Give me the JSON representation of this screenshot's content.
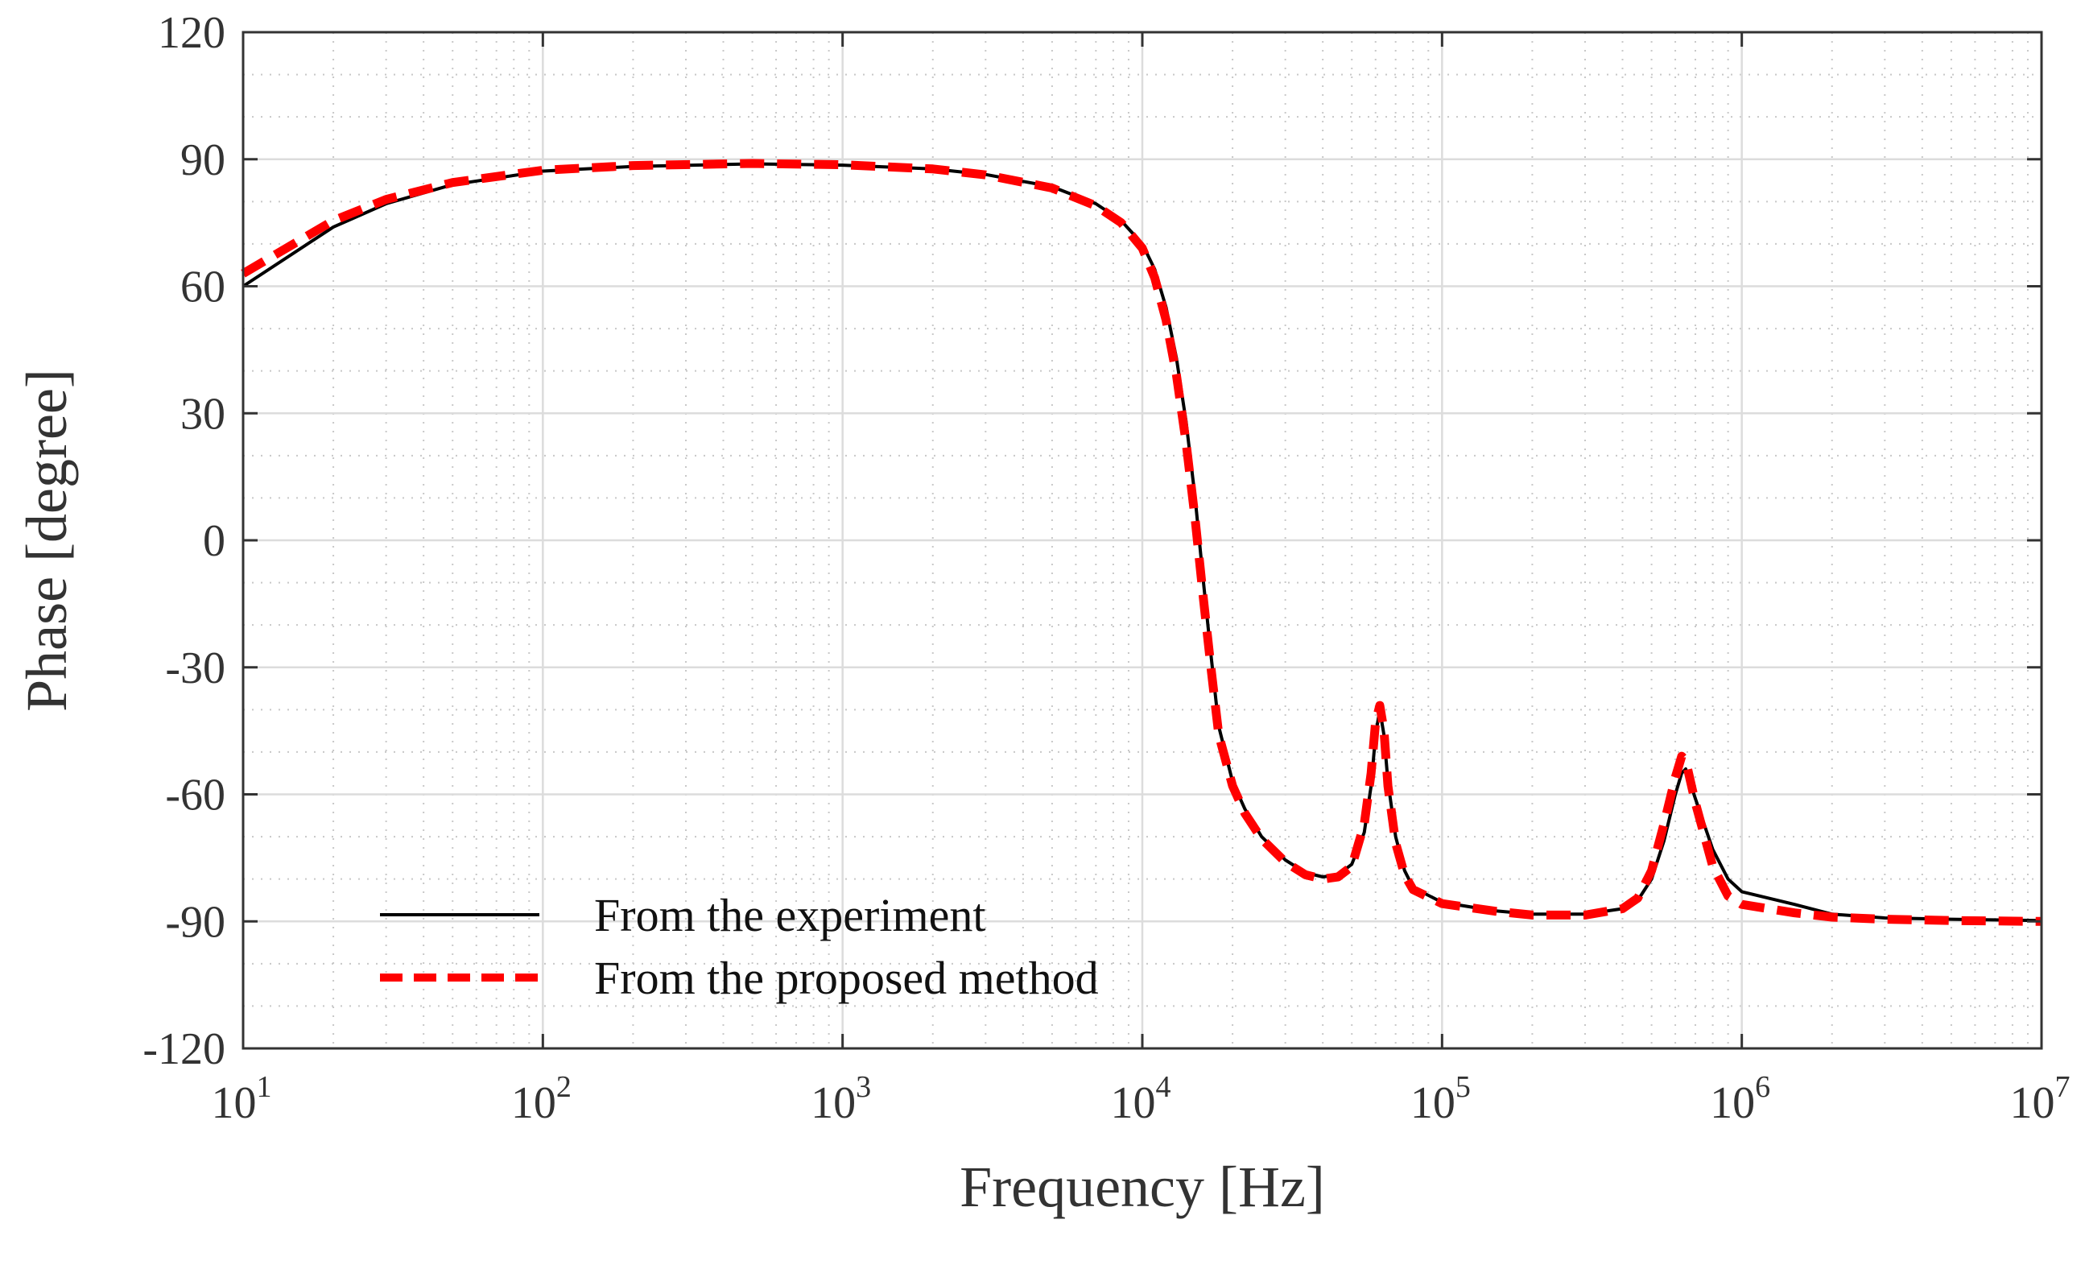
{
  "chart_data": {
    "type": "line",
    "title": "",
    "xlabel": "Frequency [Hz]",
    "ylabel": "Phase [degree]",
    "xscale": "log",
    "xlim": [
      10,
      10000000
    ],
    "ylim": [
      -120,
      120
    ],
    "grid": true,
    "legend_position": "bottom-left",
    "yticks": [
      120,
      90,
      60,
      30,
      0,
      -30,
      -60,
      -90,
      -120
    ],
    "ytick_labels": [
      "120",
      "90",
      "60",
      "30",
      "0",
      "-30",
      "-60",
      "-90",
      "-120"
    ],
    "xticks": [
      {
        "value": 10,
        "base": "10",
        "exp": "1"
      },
      {
        "value": 100,
        "base": "10",
        "exp": "2"
      },
      {
        "value": 1000,
        "base": "10",
        "exp": "3"
      },
      {
        "value": 10000,
        "base": "10",
        "exp": "4"
      },
      {
        "value": 100000,
        "base": "10",
        "exp": "5"
      },
      {
        "value": 1000000,
        "base": "10",
        "exp": "6"
      },
      {
        "value": 10000000,
        "base": "10",
        "exp": "7"
      }
    ],
    "series": [
      {
        "name": "From the experiment",
        "color": "#000000",
        "style": "solid",
        "points": [
          [
            10,
            60
          ],
          [
            20,
            74
          ],
          [
            30,
            79.5
          ],
          [
            50,
            84
          ],
          [
            100,
            87.2
          ],
          [
            200,
            88.3
          ],
          [
            500,
            88.9
          ],
          [
            1000,
            88.6
          ],
          [
            2000,
            87.7
          ],
          [
            3000,
            86.4
          ],
          [
            5000,
            83.5
          ],
          [
            7000,
            79.5
          ],
          [
            8500,
            75.5
          ],
          [
            10000,
            70
          ],
          [
            11000,
            64
          ],
          [
            12000,
            55
          ],
          [
            13000,
            43
          ],
          [
            14000,
            28
          ],
          [
            15000,
            10
          ],
          [
            16000,
            -10
          ],
          [
            17000,
            -28
          ],
          [
            18000,
            -44
          ],
          [
            20000,
            -57
          ],
          [
            22000,
            -63.5
          ],
          [
            25000,
            -70
          ],
          [
            30000,
            -75.5
          ],
          [
            35000,
            -78.5
          ],
          [
            40000,
            -79.5
          ],
          [
            45000,
            -79
          ],
          [
            50000,
            -76.5
          ],
          [
            55000,
            -69
          ],
          [
            58000,
            -58
          ],
          [
            60000,
            -46
          ],
          [
            62000,
            -40
          ],
          [
            64000,
            -46
          ],
          [
            66000,
            -57
          ],
          [
            70000,
            -70
          ],
          [
            75000,
            -78
          ],
          [
            80000,
            -82
          ],
          [
            100000,
            -85.5
          ],
          [
            150000,
            -87.5
          ],
          [
            200000,
            -88.3
          ],
          [
            300000,
            -88.3
          ],
          [
            400000,
            -87
          ],
          [
            450000,
            -85
          ],
          [
            500000,
            -80
          ],
          [
            550000,
            -71
          ],
          [
            600000,
            -60
          ],
          [
            630000,
            -55
          ],
          [
            650000,
            -54
          ],
          [
            700000,
            -61
          ],
          [
            800000,
            -73
          ],
          [
            900000,
            -80
          ],
          [
            1000000,
            -83
          ],
          [
            1500000,
            -86
          ],
          [
            2000000,
            -88.3
          ],
          [
            3000000,
            -89.2
          ],
          [
            5000000,
            -89.5
          ],
          [
            10000000,
            -89.8
          ]
        ]
      },
      {
        "name": "From the proposed method",
        "color": "#ff0000",
        "style": "dashed",
        "points": [
          [
            10,
            63
          ],
          [
            20,
            75.5
          ],
          [
            30,
            80.5
          ],
          [
            50,
            84.5
          ],
          [
            100,
            87.4
          ],
          [
            200,
            88.5
          ],
          [
            500,
            89
          ],
          [
            1000,
            88.7
          ],
          [
            2000,
            87.7
          ],
          [
            3000,
            86.3
          ],
          [
            5000,
            83.2
          ],
          [
            7000,
            79
          ],
          [
            8500,
            75
          ],
          [
            10000,
            69
          ],
          [
            11000,
            62
          ],
          [
            12000,
            52
          ],
          [
            13000,
            39
          ],
          [
            14000,
            23
          ],
          [
            15000,
            5
          ],
          [
            16000,
            -14
          ],
          [
            17000,
            -31
          ],
          [
            18000,
            -46
          ],
          [
            20000,
            -58
          ],
          [
            22000,
            -64.5
          ],
          [
            25000,
            -70.5
          ],
          [
            30000,
            -76
          ],
          [
            35000,
            -79
          ],
          [
            40000,
            -80
          ],
          [
            45000,
            -79.5
          ],
          [
            50000,
            -77
          ],
          [
            55000,
            -67
          ],
          [
            58000,
            -55
          ],
          [
            60000,
            -43
          ],
          [
            62000,
            -39
          ],
          [
            64000,
            -45
          ],
          [
            66000,
            -58
          ],
          [
            70000,
            -71.5
          ],
          [
            75000,
            -79
          ],
          [
            80000,
            -82.5
          ],
          [
            100000,
            -85.8
          ],
          [
            150000,
            -87.6
          ],
          [
            200000,
            -88.5
          ],
          [
            300000,
            -88.5
          ],
          [
            400000,
            -87
          ],
          [
            450000,
            -84.5
          ],
          [
            500000,
            -78
          ],
          [
            550000,
            -67
          ],
          [
            600000,
            -56
          ],
          [
            630000,
            -51
          ],
          [
            650000,
            -52
          ],
          [
            700000,
            -62
          ],
          [
            800000,
            -77
          ],
          [
            900000,
            -84
          ],
          [
            1000000,
            -86
          ],
          [
            1500000,
            -88
          ],
          [
            2000000,
            -89
          ],
          [
            3000000,
            -89.5
          ],
          [
            5000000,
            -89.8
          ],
          [
            10000000,
            -90
          ]
        ]
      }
    ]
  }
}
